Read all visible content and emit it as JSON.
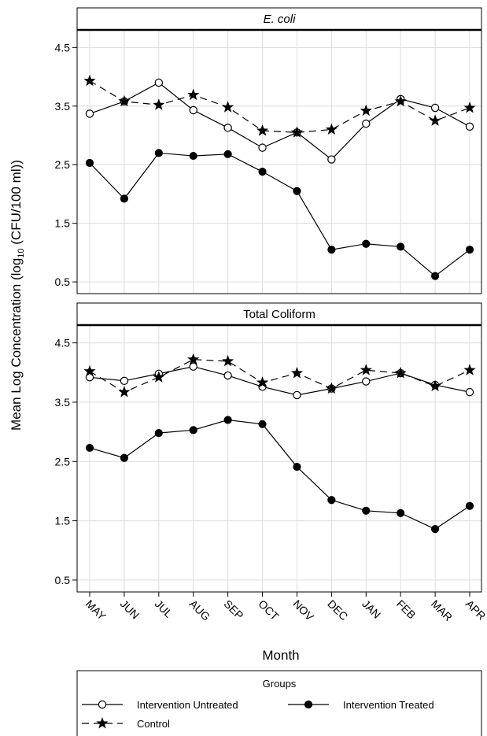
{
  "chart_data": {
    "type": "line",
    "ylabel": "Mean Log Concentration (log10 (CFU/100 ml))",
    "ylabel_parts": {
      "before": "Mean Log Concentration (log",
      "subscript": "10",
      "after": " (CFU/100 ml))"
    },
    "xlabel": "Month",
    "categories": [
      "MAY",
      "JUN",
      "JUL",
      "AUG",
      "SEP",
      "OCT",
      "NOV",
      "DEC",
      "JAN",
      "FEB",
      "MAR",
      "APR"
    ],
    "yticks": [
      0.5,
      1.5,
      2.5,
      3.5,
      4.5
    ],
    "ylim": [
      0.3,
      4.8
    ],
    "grid": true,
    "legend": {
      "title": "Groups",
      "position": "bottom",
      "entries": [
        "Intervention Untreated",
        "Intervention Treated",
        "Control"
      ]
    },
    "panels": [
      {
        "title": "E. coli",
        "title_italic": true,
        "series": [
          {
            "name": "Intervention Untreated",
            "marker": "open-circle",
            "line": "solid",
            "values": [
              3.37,
              3.58,
              3.9,
              3.43,
              3.13,
              2.79,
              3.05,
              2.59,
              3.2,
              3.62,
              3.47,
              3.15
            ]
          },
          {
            "name": "Intervention Treated",
            "marker": "filled-circle",
            "line": "solid",
            "values": [
              2.53,
              1.92,
              2.7,
              2.65,
              2.68,
              2.38,
              2.05,
              1.05,
              1.15,
              1.1,
              0.6,
              1.05
            ]
          },
          {
            "name": "Control",
            "marker": "star",
            "line": "dashed",
            "values": [
              3.93,
              3.58,
              3.52,
              3.69,
              3.48,
              3.08,
              3.05,
              3.1,
              3.42,
              3.58,
              3.25,
              3.47
            ]
          }
        ]
      },
      {
        "title": "Total Coliform",
        "title_italic": false,
        "series": [
          {
            "name": "Intervention Untreated",
            "marker": "open-circle",
            "line": "solid",
            "values": [
              3.92,
              3.86,
              3.98,
              4.1,
              3.95,
              3.76,
              3.62,
              3.73,
              3.85,
              3.99,
              3.79,
              3.67
            ]
          },
          {
            "name": "Intervention Treated",
            "marker": "filled-circle",
            "line": "solid",
            "values": [
              2.73,
              2.56,
              2.98,
              3.03,
              3.2,
              3.13,
              2.41,
              1.85,
              1.67,
              1.63,
              1.36,
              1.75
            ]
          },
          {
            "name": "Control",
            "marker": "star",
            "line": "dashed",
            "values": [
              4.02,
              3.67,
              3.92,
              4.22,
              4.19,
              3.83,
              3.99,
              3.73,
              4.04,
              3.99,
              3.77,
              4.04
            ]
          }
        ]
      }
    ]
  }
}
